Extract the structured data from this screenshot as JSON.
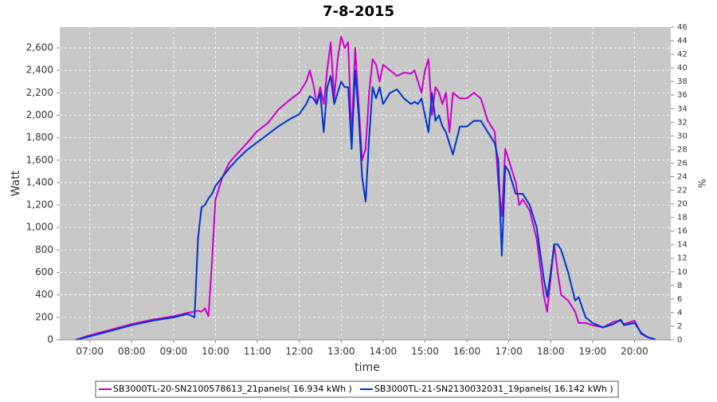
{
  "chart_data": {
    "type": "line",
    "title": "7-8-2015",
    "xlabel": "time",
    "ylabel": "Watt",
    "y2label": "%",
    "x": [
      "06:40",
      "07:00",
      "07:30",
      "08:00",
      "08:30",
      "09:00",
      "09:20",
      "09:30",
      "09:35",
      "09:40",
      "09:45",
      "09:50",
      "09:55",
      "10:00",
      "10:10",
      "10:20",
      "10:30",
      "10:45",
      "11:00",
      "11:15",
      "11:30",
      "11:45",
      "12:00",
      "12:10",
      "12:15",
      "12:20",
      "12:25",
      "12:30",
      "12:35",
      "12:40",
      "12:45",
      "12:50",
      "12:55",
      "13:00",
      "13:05",
      "13:10",
      "13:15",
      "13:20",
      "13:25",
      "13:30",
      "13:35",
      "13:40",
      "13:45",
      "13:50",
      "13:55",
      "14:00",
      "14:10",
      "14:20",
      "14:30",
      "14:40",
      "14:45",
      "14:50",
      "14:55",
      "15:00",
      "15:05",
      "15:10",
      "15:15",
      "15:20",
      "15:25",
      "15:30",
      "15:35",
      "15:40",
      "15:50",
      "16:00",
      "16:10",
      "16:20",
      "16:30",
      "16:40",
      "16:45",
      "16:50",
      "16:55",
      "17:00",
      "17:10",
      "17:15",
      "17:20",
      "17:30",
      "17:40",
      "17:50",
      "17:55",
      "18:00",
      "18:05",
      "18:10",
      "18:15",
      "18:25",
      "18:35",
      "18:40",
      "18:50",
      "19:00",
      "19:15",
      "19:30",
      "19:40",
      "19:45",
      "20:00",
      "20:10",
      "20:20",
      "20:30"
    ],
    "series": [
      {
        "name": "SB3000TL-20-SN2100578613_21panels( 16.934 kWh )",
        "color": "#cc00cc",
        "values": [
          0,
          40,
          90,
          140,
          180,
          210,
          240,
          250,
          260,
          250,
          280,
          210,
          700,
          1250,
          1450,
          1580,
          1650,
          1750,
          1860,
          1930,
          2050,
          2130,
          2200,
          2300,
          2400,
          2280,
          2100,
          2250,
          2100,
          2400,
          2650,
          2150,
          2500,
          2700,
          2600,
          2650,
          1800,
          2600,
          2100,
          1600,
          1700,
          2200,
          2500,
          2450,
          2300,
          2450,
          2400,
          2350,
          2380,
          2370,
          2400,
          2300,
          2200,
          2400,
          2500,
          2000,
          2250,
          2200,
          2100,
          2200,
          1850,
          2200,
          2150,
          2150,
          2200,
          2150,
          1950,
          1850,
          1400,
          1100,
          1700,
          1600,
          1400,
          1200,
          1250,
          1150,
          900,
          400,
          250,
          550,
          850,
          600,
          400,
          350,
          250,
          150,
          150,
          130,
          110,
          160,
          170,
          140,
          170,
          50,
          20,
          0
        ]
      },
      {
        "name": "SB3000TL-21-SN2130032031_19panels( 16.142 kWh )",
        "color": "#0033cc",
        "values": [
          0,
          30,
          80,
          130,
          170,
          200,
          230,
          200,
          900,
          1180,
          1200,
          1260,
          1300,
          1370,
          1450,
          1530,
          1600,
          1690,
          1760,
          1830,
          1900,
          1960,
          2010,
          2100,
          2170,
          2150,
          2100,
          2200,
          1850,
          2250,
          2350,
          2100,
          2200,
          2300,
          2250,
          2250,
          1700,
          2400,
          2000,
          1450,
          1230,
          1800,
          2250,
          2150,
          2250,
          2100,
          2200,
          2230,
          2150,
          2100,
          2120,
          2100,
          2150,
          2000,
          1850,
          2200,
          1950,
          2000,
          1900,
          1850,
          1750,
          1650,
          1900,
          1900,
          1950,
          1950,
          1850,
          1750,
          1600,
          750,
          1550,
          1500,
          1300,
          1300,
          1300,
          1200,
          1000,
          550,
          380,
          600,
          850,
          850,
          800,
          600,
          350,
          380,
          200,
          150,
          110,
          140,
          180,
          130,
          150,
          60,
          20,
          5
        ]
      }
    ],
    "xlim": [
      "06:17",
      "20:52"
    ],
    "xticks": [
      "07:00",
      "08:00",
      "09:00",
      "10:00",
      "11:00",
      "12:00",
      "13:00",
      "14:00",
      "15:00",
      "16:00",
      "17:00",
      "18:00",
      "19:00",
      "20:00"
    ],
    "ylim": [
      0,
      2785
    ],
    "yticks": [
      0,
      200,
      400,
      600,
      800,
      {
        "value": 1000,
        "label": "1,000"
      },
      {
        "value": 1200,
        "label": "1,200"
      },
      {
        "value": 1400,
        "label": "1,400"
      },
      {
        "value": 1600,
        "label": "1,600"
      },
      {
        "value": 1800,
        "label": "1,800"
      },
      {
        "value": 2000,
        "label": "2,000"
      },
      {
        "value": 2200,
        "label": "2,200"
      },
      {
        "value": 2400,
        "label": "2,400"
      },
      {
        "value": 2600,
        "label": "2,600"
      }
    ],
    "y2lim": [
      0,
      46
    ],
    "y2ticks": [
      0,
      2,
      4,
      6,
      8,
      10,
      12,
      14,
      16,
      18,
      20,
      22,
      24,
      26,
      28,
      30,
      32,
      34,
      36,
      38,
      40,
      42,
      44,
      46
    ],
    "grid": true,
    "legend": "bottom"
  }
}
